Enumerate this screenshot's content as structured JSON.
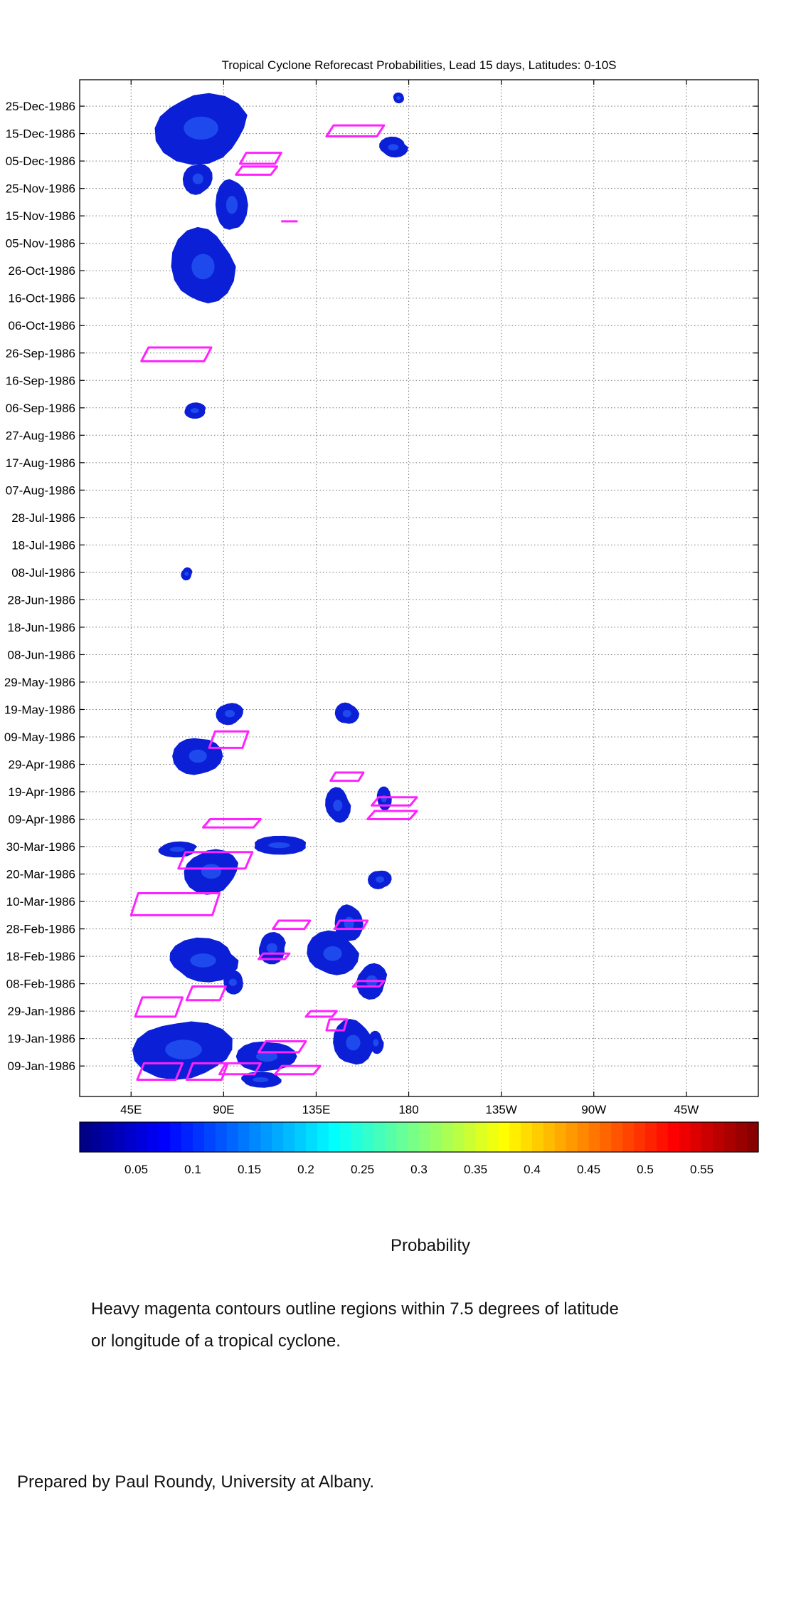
{
  "chart_data": {
    "type": "heatmap",
    "title": "Tropical Cyclone Reforecast Probabilities, Lead 15 days, Latitudes: 0-10S",
    "x_tick_labels": [
      "45E",
      "90E",
      "135E",
      "180",
      "135W",
      "90W",
      "45W"
    ],
    "x_tick_lon": [
      45,
      90,
      135,
      180,
      225,
      270,
      315
    ],
    "xlim_lon": [
      20,
      350
    ],
    "y_tick_labels": [
      "25-Dec-1986",
      "15-Dec-1986",
      "05-Dec-1986",
      "25-Nov-1986",
      "15-Nov-1986",
      "05-Nov-1986",
      "26-Oct-1986",
      "16-Oct-1986",
      "06-Oct-1986",
      "26-Sep-1986",
      "16-Sep-1986",
      "06-Sep-1986",
      "27-Aug-1986",
      "17-Aug-1986",
      "07-Aug-1986",
      "28-Jul-1986",
      "18-Jul-1986",
      "08-Jul-1986",
      "28-Jun-1986",
      "18-Jun-1986",
      "08-Jun-1986",
      "29-May-1986",
      "19-May-1986",
      "09-May-1986",
      "29-Apr-1986",
      "19-Apr-1986",
      "09-Apr-1986",
      "30-Mar-1986",
      "20-Mar-1986",
      "10-Mar-1986",
      "28-Feb-1986",
      "18-Feb-1986",
      "08-Feb-1986",
      "29-Jan-1986",
      "19-Jan-1986",
      "09-Jan-1986"
    ],
    "grid": true,
    "colorbar": {
      "label": "Probability",
      "tick_labels": [
        "0.05",
        "0.1",
        "0.15",
        "0.2",
        "0.25",
        "0.3",
        "0.35",
        "0.4",
        "0.45",
        "0.5",
        "0.55"
      ],
      "tick_values": [
        0.05,
        0.1,
        0.15,
        0.2,
        0.25,
        0.3,
        0.35,
        0.4,
        0.45,
        0.5,
        0.55
      ],
      "range": [
        0,
        0.6
      ],
      "colormap": "jet"
    },
    "colors": {
      "probability_fill": "#0a1fd6",
      "probability_high": "#2f6cff",
      "cyclone_contour": "#ff22ff"
    },
    "probability_regions": [
      {
        "lon": [
          55,
          103
        ],
        "date": [
          "1986-12-03",
          "1986-12-31"
        ]
      },
      {
        "lon": [
          70,
          85
        ],
        "date": [
          "1986-11-22",
          "1986-12-05"
        ]
      },
      {
        "lon": [
          86,
          102
        ],
        "date": [
          "1986-11-08",
          "1986-11-30"
        ]
      },
      {
        "lon": [
          64,
          96
        ],
        "date": [
          "1986-10-12",
          "1986-11-12"
        ]
      },
      {
        "lon": [
          165,
          180
        ],
        "date": [
          "1986-12-06",
          "1986-12-14"
        ]
      },
      {
        "lon": [
          172,
          178
        ],
        "date": [
          "1986-12-26",
          "1986-12-30"
        ]
      },
      {
        "lon": [
          70,
          82
        ],
        "date": [
          "1986-09-02",
          "1986-09-08"
        ]
      },
      {
        "lon": [
          69,
          75
        ],
        "date": [
          "1986-07-05",
          "1986-07-10"
        ]
      },
      {
        "lon": [
          86,
          100
        ],
        "date": [
          "1986-05-13",
          "1986-05-22"
        ]
      },
      {
        "lon": [
          65,
          90
        ],
        "date": [
          "1986-04-24",
          "1986-05-10"
        ]
      },
      {
        "lon": [
          144,
          156
        ],
        "date": [
          "1986-05-13",
          "1986-05-22"
        ]
      },
      {
        "lon": [
          139,
          152
        ],
        "date": [
          "1986-04-07",
          "1986-04-21"
        ]
      },
      {
        "lon": [
          164,
          172
        ],
        "date": [
          "1986-04-12",
          "1986-04-21"
        ]
      },
      {
        "lon": [
          102,
          132
        ],
        "date": [
          "1986-03-27",
          "1986-04-03"
        ]
      },
      {
        "lon": [
          57,
          78
        ],
        "date": [
          "1986-03-26",
          "1986-04-01"
        ]
      },
      {
        "lon": [
          70,
          98
        ],
        "date": [
          "1986-03-12",
          "1986-03-30"
        ]
      },
      {
        "lon": [
          160,
          172
        ],
        "date": [
          "1986-03-14",
          "1986-03-22"
        ]
      },
      {
        "lon": [
          144,
          158
        ],
        "date": [
          "1986-02-22",
          "1986-03-10"
        ]
      },
      {
        "lon": [
          130,
          156
        ],
        "date": [
          "1986-02-10",
          "1986-02-28"
        ]
      },
      {
        "lon": [
          62,
          98
        ],
        "date": [
          "1986-02-08",
          "1986-02-25"
        ]
      },
      {
        "lon": [
          89,
          100
        ],
        "date": [
          "1986-02-04",
          "1986-02-13"
        ]
      },
      {
        "lon": [
          106,
          121
        ],
        "date": [
          "1986-02-15",
          "1986-02-27"
        ]
      },
      {
        "lon": [
          154,
          170
        ],
        "date": [
          "1986-02-02",
          "1986-02-16"
        ]
      },
      {
        "lon": [
          45,
          96
        ],
        "date": [
          "1986-01-03",
          "1986-01-27"
        ]
      },
      {
        "lon": [
          96,
          126
        ],
        "date": [
          "1986-01-06",
          "1986-01-19"
        ]
      },
      {
        "lon": [
          143,
          163
        ],
        "date": [
          "1986-01-08",
          "1986-01-27"
        ]
      },
      {
        "lon": [
          160,
          168
        ],
        "date": [
          "1986-01-13",
          "1986-01-22"
        ]
      },
      {
        "lon": [
          97,
          119
        ],
        "date": [
          "1986-01-01",
          "1986-01-07"
        ]
      }
    ],
    "cyclone_contours": [
      {
        "lon": [
          140,
          168
        ],
        "date": [
          "1986-12-14",
          "1986-12-18"
        ]
      },
      {
        "lon": [
          98,
          118
        ],
        "date": [
          "1986-12-04",
          "1986-12-08"
        ]
      },
      {
        "lon": [
          96,
          116
        ],
        "date": [
          "1986-11-30",
          "1986-12-03"
        ]
      },
      {
        "lon": [
          118,
          126
        ],
        "date": [
          "1986-11-12",
          "1986-11-13"
        ]
      },
      {
        "lon": [
          50,
          84
        ],
        "date": [
          "1986-09-23",
          "1986-09-28"
        ]
      },
      {
        "lon": [
          83,
          102
        ],
        "date": [
          "1986-05-05",
          "1986-05-11"
        ]
      },
      {
        "lon": [
          142,
          158
        ],
        "date": [
          "1986-04-23",
          "1986-04-26"
        ]
      },
      {
        "lon": [
          162,
          184
        ],
        "date": [
          "1986-04-14",
          "1986-04-17"
        ]
      },
      {
        "lon": [
          160,
          184
        ],
        "date": [
          "1986-04-09",
          "1986-04-12"
        ]
      },
      {
        "lon": [
          80,
          108
        ],
        "date": [
          "1986-04-06",
          "1986-04-09"
        ]
      },
      {
        "lon": [
          68,
          104
        ],
        "date": [
          "1986-03-22",
          "1986-03-28"
        ]
      },
      {
        "lon": [
          45,
          88
        ],
        "date": [
          "1986-03-05",
          "1986-03-13"
        ]
      },
      {
        "lon": [
          114,
          132
        ],
        "date": [
          "1986-02-28",
          "1986-03-03"
        ]
      },
      {
        "lon": [
          144,
          160
        ],
        "date": [
          "1986-02-28",
          "1986-03-03"
        ]
      },
      {
        "lon": [
          107,
          122
        ],
        "date": [
          "1986-02-17",
          "1986-02-19"
        ]
      },
      {
        "lon": [
          153,
          168
        ],
        "date": [
          "1986-02-07",
          "1986-02-09"
        ]
      },
      {
        "lon": [
          72,
          91
        ],
        "date": [
          "1986-02-02",
          "1986-02-07"
        ]
      },
      {
        "lon": [
          47,
          70
        ],
        "date": [
          "1986-01-27",
          "1986-02-03"
        ]
      },
      {
        "lon": [
          130,
          145
        ],
        "date": [
          "1986-01-27",
          "1986-01-29"
        ]
      },
      {
        "lon": [
          140,
          150
        ],
        "date": [
          "1986-01-22",
          "1986-01-26"
        ]
      },
      {
        "lon": [
          107,
          130
        ],
        "date": [
          "1986-01-14",
          "1986-01-18"
        ]
      },
      {
        "lon": [
          48,
          70
        ],
        "date": [
          "1986-01-04",
          "1986-01-10"
        ]
      },
      {
        "lon": [
          72,
          92
        ],
        "date": [
          "1986-01-04",
          "1986-01-10"
        ]
      },
      {
        "lon": [
          88,
          108
        ],
        "date": [
          "1986-01-06",
          "1986-01-10"
        ]
      },
      {
        "lon": [
          115,
          137
        ],
        "date": [
          "1986-01-06",
          "1986-01-09"
        ]
      }
    ]
  },
  "caption": {
    "line1": "Heavy magenta contours outline regions within 7.5 degrees of latitude",
    "line2": "or longitude of a tropical cyclone."
  },
  "credit": "Prepared by Paul Roundy, University at Albany."
}
